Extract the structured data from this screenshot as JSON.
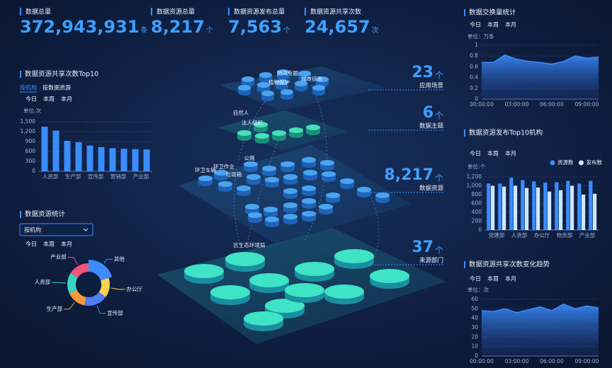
{
  "stats": [
    {
      "label": "数据总量",
      "value": "372,943,931",
      "unit": "条"
    },
    {
      "label": "数据资源总量",
      "value": "8,217",
      "unit": "个"
    },
    {
      "label": "数据资源发布总量",
      "value": "7,563",
      "unit": "个"
    },
    {
      "label": "数据资源共享次数",
      "value": "24,657",
      "unit": "次"
    }
  ],
  "diagram": {
    "layers": [
      {
        "labels": [
          "防汛专题",
          "城市综治",
          "植物保护"
        ],
        "count": "23",
        "unit": "个",
        "name": "应用场景"
      },
      {
        "labels": [
          "自然人",
          "法人组织"
        ],
        "count": "6",
        "unit": "个",
        "name": "数据主题"
      },
      {
        "labels": [
          "公厕",
          "环卫车辆",
          "环卫作业",
          "垃圾箱"
        ],
        "count": "8,217",
        "unit": "个",
        "name": "数据资源"
      },
      {
        "labels": [
          "区生态环境局"
        ],
        "count": "37",
        "unit": "个",
        "name": "来源部门"
      }
    ]
  },
  "chart_data": [
    {
      "type": "bar",
      "title": "数据资源共享次数Top10",
      "filters": [
        "按机构",
        "按数据资源"
      ],
      "tabs": [
        "今日",
        "本周",
        "本月"
      ],
      "unit_label": "单位:次",
      "categories": [
        "人资部",
        null,
        "生产部",
        null,
        "宣传部",
        null,
        "营销部",
        null,
        "产业部",
        null
      ],
      "values": [
        1350,
        1230,
        920,
        880,
        780,
        730,
        700,
        680,
        670,
        660
      ],
      "color": "#3a8dff",
      "ylim": [
        0,
        1500
      ],
      "yticks": [
        0,
        300,
        600,
        900,
        {
          "value": 1200,
          "label": "1,200"
        },
        {
          "value": 1500,
          "label": "1,500"
        }
      ],
      "grid": true
    },
    {
      "type": "pie",
      "title": "数据资源统计",
      "dropdown": "按机构",
      "tabs": [
        "今日",
        "本周",
        "本月"
      ],
      "categories": [
        "其他",
        "办公厅",
        "宣传部",
        "生产部",
        "人资部",
        "产业部"
      ],
      "values": [
        20,
        15,
        18,
        15,
        16,
        16
      ],
      "colors": [
        "#3d8bff",
        "#f7d44a",
        "#4f7cf7",
        "#f59a3b",
        "#3ad4c0",
        "#f2557a"
      ]
    },
    {
      "type": "area",
      "title": "数据交换量统计",
      "tabs": [
        "今日",
        "本周",
        "本月"
      ],
      "unit_label": "单位：万条",
      "categories": [
        "00:00:00",
        null,
        null,
        "03:00:00",
        null,
        null,
        "06:00:00",
        null,
        null,
        "09:00:00",
        null
      ],
      "values": [
        0.68,
        0.68,
        0.82,
        0.74,
        0.7,
        0.68,
        0.65,
        0.7,
        0.8,
        0.76,
        0.78
      ],
      "color": "#3a8dff",
      "ylim": [
        0,
        1
      ],
      "yticks": [
        0,
        0.2,
        0.4,
        0.6,
        0.8,
        1
      ],
      "grid": true
    },
    {
      "type": "bar",
      "title": "数据资源发布Top10机构",
      "tabs": [
        "今日",
        "本周",
        "本月"
      ],
      "unit_label": "单位:个",
      "categories": [
        "党建部",
        null,
        "人资部",
        null,
        "办公厅",
        null,
        "物资部",
        null,
        "产业部",
        null
      ],
      "series": [
        {
          "name": "资源数",
          "color": "#3a8dff",
          "values": [
            1050,
            1050,
            1180,
            1130,
            1100,
            1070,
            1080,
            1110,
            1050,
            1110
          ]
        },
        {
          "name": "发布数",
          "color": "#cfe6ff",
          "values": [
            1000,
            980,
            1000,
            950,
            960,
            870,
            900,
            1000,
            800,
            820
          ]
        }
      ],
      "ylim": [
        0,
        1200
      ],
      "yticks": [
        0,
        200,
        400,
        600,
        800,
        {
          "value": 1000,
          "label": "1,000"
        },
        {
          "value": 1200,
          "label": "1,200"
        }
      ],
      "legend": "top-right",
      "grid": true
    },
    {
      "type": "area",
      "title": "数据资源共享次数变化趋势",
      "tabs": [
        "今日",
        "本周",
        "本月"
      ],
      "unit_label": "单位：次",
      "categories": [
        "00:00:00",
        null,
        null,
        "03:00:00",
        null,
        null,
        "06:00:00",
        null,
        null,
        "09:00:00",
        null
      ],
      "values": [
        48,
        47,
        50,
        46,
        49,
        52,
        48,
        55,
        50,
        53,
        51
      ],
      "color": "#3a8dff",
      "ylim": [
        0,
        60
      ],
      "yticks": [
        0,
        10,
        20,
        30,
        40,
        50,
        60
      ],
      "grid": true
    }
  ]
}
